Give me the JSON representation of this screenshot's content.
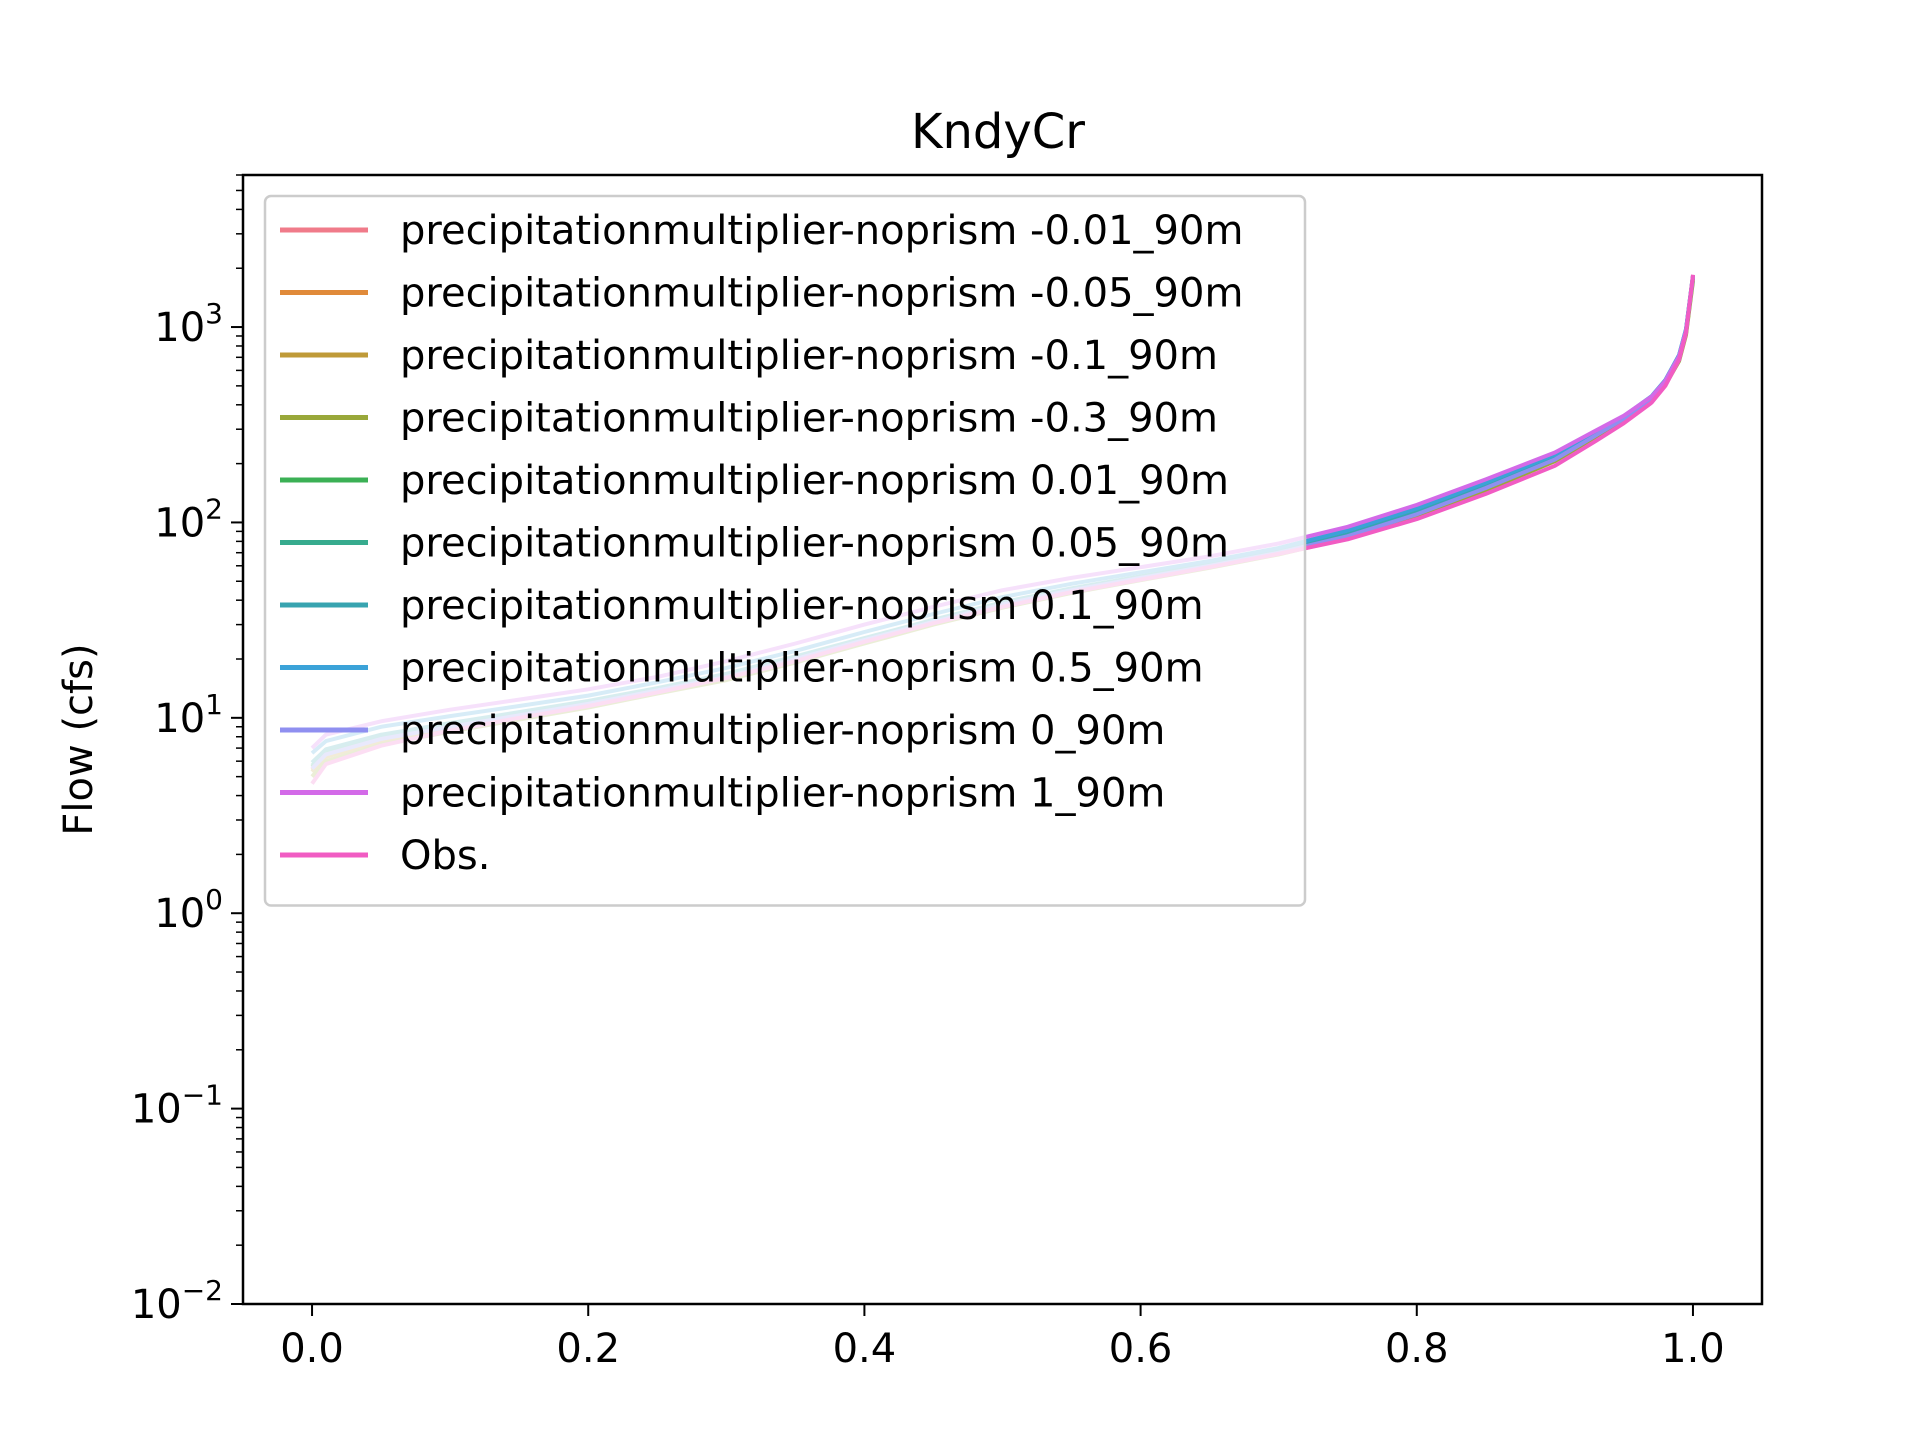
{
  "chart_data": {
    "type": "line",
    "title": "KndyCr",
    "xlabel": "",
    "ylabel": "Flow (cfs)",
    "xlim": [
      -0.05,
      1.05
    ],
    "ylim": [
      0.01,
      6000
    ],
    "yscale": "log",
    "grid": false,
    "legend_position": "upper left",
    "x_ticks": [
      {
        "value": 0.0,
        "label": "0.0"
      },
      {
        "value": 0.2,
        "label": "0.2"
      },
      {
        "value": 0.4,
        "label": "0.4"
      },
      {
        "value": 0.6,
        "label": "0.6"
      },
      {
        "value": 0.8,
        "label": "0.8"
      },
      {
        "value": 1.0,
        "label": "1.0"
      }
    ],
    "y_ticks": [
      {
        "value": 0.01,
        "base": "10",
        "exp": "−2"
      },
      {
        "value": 0.1,
        "base": "10",
        "exp": "−1"
      },
      {
        "value": 1,
        "base": "10",
        "exp": "0"
      },
      {
        "value": 10,
        "base": "10",
        "exp": "1"
      },
      {
        "value": 100,
        "base": "10",
        "exp": "2"
      },
      {
        "value": 1000,
        "base": "10",
        "exp": "3"
      }
    ],
    "x": [
      0.0,
      0.01,
      0.05,
      0.1,
      0.15,
      0.2,
      0.25,
      0.3,
      0.35,
      0.4,
      0.45,
      0.5,
      0.55,
      0.6,
      0.65,
      0.7,
      0.75,
      0.8,
      0.85,
      0.9,
      0.93,
      0.95,
      0.97,
      0.98,
      0.99,
      0.995,
      1.0
    ],
    "series": [
      {
        "name": "precipitationmultiplier-noprism -0.01_90m",
        "color": "#f07b8a",
        "values": [
          5.5,
          6.5,
          7.8,
          9.0,
          10.3,
          11.8,
          13.8,
          16.2,
          20.0,
          25.0,
          31.0,
          38.0,
          45.0,
          52.0,
          60.0,
          70.0,
          85.0,
          110.0,
          150.0,
          210.0,
          280.0,
          340.0,
          430.0,
          520.0,
          700.0,
          950.0,
          1800.0
        ]
      },
      {
        "name": "precipitationmultiplier-noprism -0.05_90m",
        "color": "#e08a3a",
        "values": [
          5.4,
          6.4,
          7.7,
          8.9,
          10.2,
          11.7,
          13.7,
          16.1,
          19.8,
          24.8,
          30.8,
          37.7,
          44.7,
          51.7,
          59.7,
          69.7,
          84.5,
          109.0,
          149.0,
          209.0,
          279.0,
          338.0,
          428.0,
          515.0,
          690.0,
          940.0,
          1780.0
        ]
      },
      {
        "name": "precipitationmultiplier-noprism -0.1_90m",
        "color": "#bf9a38",
        "values": [
          5.3,
          6.3,
          7.6,
          8.8,
          10.1,
          11.6,
          13.6,
          16.0,
          19.6,
          24.6,
          30.6,
          37.4,
          44.4,
          51.4,
          59.4,
          69.4,
          84.0,
          108.0,
          148.0,
          208.0,
          278.0,
          336.0,
          426.0,
          510.0,
          680.0,
          930.0,
          1760.0
        ]
      },
      {
        "name": "precipitationmultiplier-noprism -0.3_90m",
        "color": "#99a83a",
        "values": [
          5.0,
          6.0,
          7.3,
          8.5,
          9.8,
          11.3,
          13.3,
          15.6,
          19.2,
          24.0,
          30.0,
          36.6,
          43.6,
          50.6,
          58.6,
          68.6,
          83.0,
          107.0,
          146.0,
          206.0,
          275.0,
          333.0,
          422.0,
          505.0,
          670.0,
          910.0,
          1720.0
        ]
      },
      {
        "name": "precipitationmultiplier-noprism 0.01_90m",
        "color": "#3bb055",
        "values": [
          5.6,
          6.6,
          7.9,
          9.1,
          10.4,
          11.9,
          13.9,
          16.3,
          20.1,
          25.1,
          31.1,
          38.2,
          45.2,
          52.2,
          60.2,
          70.2,
          85.5,
          111.0,
          151.0,
          211.0,
          281.0,
          341.0,
          432.0,
          522.0,
          705.0,
          955.0,
          1810.0
        ]
      },
      {
        "name": "precipitationmultiplier-noprism 0.05_90m",
        "color": "#37ab8e",
        "values": [
          5.7,
          6.7,
          8.0,
          9.2,
          10.5,
          12.0,
          14.0,
          16.5,
          20.3,
          25.3,
          31.4,
          38.5,
          45.5,
          52.5,
          60.5,
          70.5,
          86.0,
          112.0,
          152.0,
          213.0,
          283.0,
          343.0,
          435.0,
          525.0,
          710.0,
          960.0,
          1820.0
        ]
      },
      {
        "name": "precipitationmultiplier-noprism 0.1_90m",
        "color": "#38a4b0",
        "values": [
          5.9,
          6.9,
          8.2,
          9.4,
          10.7,
          12.2,
          14.2,
          16.8,
          20.6,
          25.6,
          31.8,
          39.0,
          46.0,
          53.0,
          61.0,
          71.0,
          87.0,
          113.0,
          154.0,
          215.0,
          285.0,
          345.0,
          438.0,
          530.0,
          715.0,
          970.0,
          1830.0
        ]
      },
      {
        "name": "precipitationmultiplier-noprism 0.5_90m",
        "color": "#3ba2d8",
        "values": [
          6.6,
          7.6,
          9.0,
          10.2,
          11.5,
          13.0,
          15.2,
          18.0,
          22.0,
          27.5,
          34.0,
          41.5,
          48.5,
          55.5,
          63.5,
          74.0,
          91.0,
          118.0,
          160.0,
          222.0,
          292.0,
          350.0,
          442.0,
          535.0,
          720.0,
          975.0,
          1840.0
        ]
      },
      {
        "name": "precipitationmultiplier-noprism 0_90m",
        "color": "#8f8ff0",
        "values": [
          5.5,
          6.5,
          7.8,
          9.0,
          10.3,
          11.8,
          13.8,
          16.2,
          20.0,
          25.0,
          31.0,
          38.0,
          45.0,
          52.0,
          60.0,
          70.0,
          85.0,
          110.0,
          150.0,
          210.0,
          280.0,
          340.0,
          430.0,
          520.0,
          700.0,
          950.0,
          1800.0
        ]
      },
      {
        "name": "precipitationmultiplier-noprism 1_90m",
        "color": "#d36ae8",
        "values": [
          7.0,
          8.2,
          9.6,
          11.0,
          12.4,
          14.0,
          16.2,
          19.5,
          24.0,
          30.0,
          37.0,
          45.0,
          52.0,
          59.0,
          67.0,
          78.0,
          95.0,
          123.0,
          166.0,
          228.0,
          296.0,
          352.0,
          440.0,
          530.0,
          710.0,
          960.0,
          1820.0
        ]
      },
      {
        "name": "Obs.",
        "color": "#f15cc3",
        "values": [
          4.6,
          5.8,
          7.2,
          8.6,
          10.0,
          11.5,
          13.5,
          16.0,
          19.5,
          24.5,
          30.5,
          37.0,
          44.0,
          51.0,
          59.0,
          69.0,
          82.0,
          104.0,
          140.0,
          195.0,
          262.0,
          322.0,
          410.0,
          500.0,
          680.0,
          930.0,
          1850.0
        ]
      }
    ]
  }
}
